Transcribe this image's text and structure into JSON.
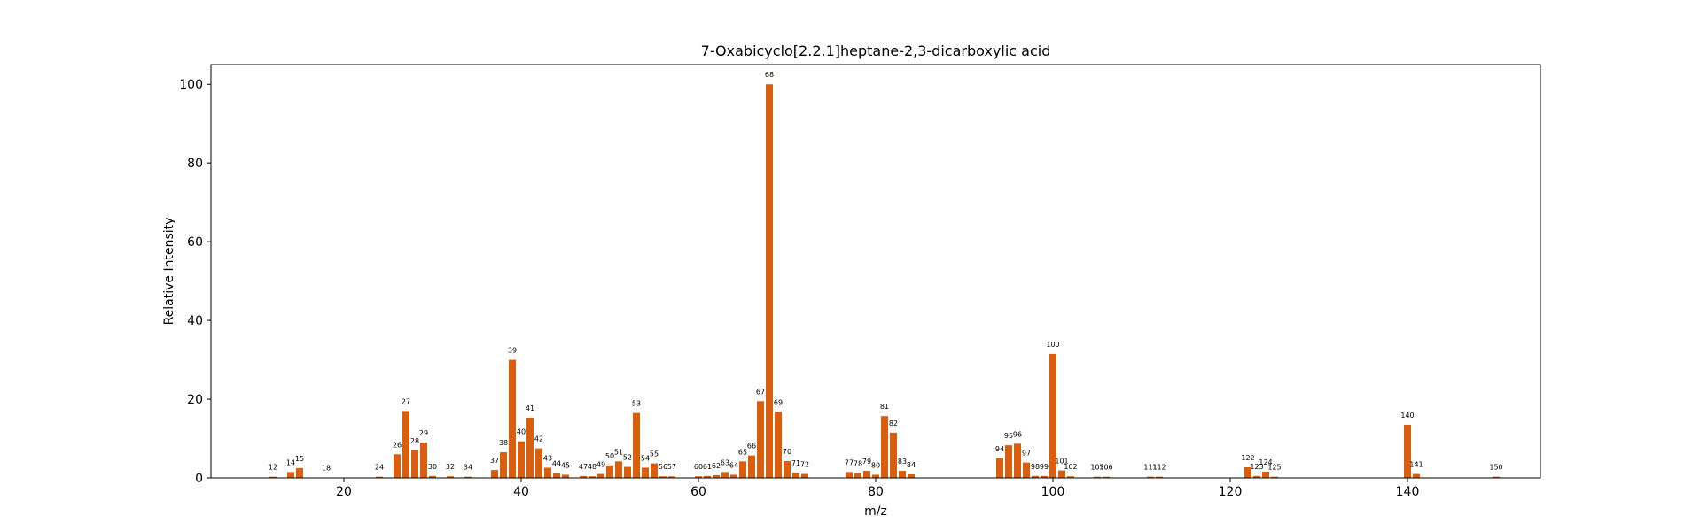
{
  "chart_data": {
    "type": "bar",
    "title": "7-Oxabicyclo[2.2.1]heptane-2,3-dicarboxylic acid",
    "xlabel": "m/z",
    "ylabel": "Relative Intensity",
    "xlim": [
      5,
      155
    ],
    "ylim": [
      0,
      105
    ],
    "xticks": [
      20,
      40,
      60,
      80,
      100,
      120,
      140
    ],
    "yticks": [
      0,
      20,
      40,
      60,
      80,
      100
    ],
    "bar_color": "#d95f0e",
    "bar_width": 0.8,
    "x": [
      12,
      14,
      15,
      18,
      24,
      26,
      27,
      28,
      29,
      30,
      32,
      34,
      37,
      38,
      39,
      40,
      41,
      42,
      43,
      44,
      45,
      47,
      48,
      49,
      50,
      51,
      52,
      53,
      54,
      55,
      56,
      57,
      60,
      61,
      62,
      63,
      64,
      65,
      66,
      67,
      68,
      69,
      70,
      71,
      72,
      77,
      78,
      79,
      80,
      81,
      82,
      83,
      84,
      94,
      95,
      96,
      97,
      98,
      99,
      100,
      101,
      102,
      105,
      106,
      111,
      112,
      122,
      123,
      124,
      125,
      140,
      141,
      150
    ],
    "values": [
      0.3,
      1.5,
      2.5,
      0.1,
      0.3,
      6.0,
      17.0,
      7.0,
      9.0,
      0.5,
      0.4,
      0.3,
      2.0,
      6.5,
      30.0,
      9.3,
      15.3,
      7.5,
      2.6,
      1.2,
      0.8,
      0.5,
      0.4,
      1.0,
      3.2,
      4.2,
      2.8,
      16.5,
      2.6,
      3.7,
      0.4,
      0.4,
      0.4,
      0.5,
      0.7,
      1.5,
      0.8,
      4.2,
      5.7,
      19.5,
      100.0,
      16.8,
      4.3,
      1.3,
      1.0,
      1.5,
      1.2,
      1.8,
      0.8,
      15.7,
      11.5,
      1.8,
      0.9,
      5.0,
      8.3,
      8.7,
      3.9,
      0.5,
      0.5,
      31.5,
      1.9,
      0.4,
      0.3,
      0.3,
      0.3,
      0.3,
      2.7,
      0.5,
      1.6,
      0.3,
      13.5,
      1.0,
      0.3
    ],
    "labels": [
      "12",
      "14",
      "15",
      "18",
      "24",
      "26",
      "27",
      "28",
      "29",
      "30",
      "32",
      "34",
      "37",
      "38",
      "39",
      "40",
      "41",
      "42",
      "43",
      "44",
      "45",
      "47",
      "48",
      "49",
      "50",
      "51",
      "52",
      "53",
      "54",
      "55",
      "56",
      "57",
      "60",
      "61",
      "62",
      "63",
      "64",
      "65",
      "66",
      "67",
      "68",
      "69",
      "70",
      "71",
      "72",
      "77",
      "78",
      "79",
      "80",
      "81",
      "82",
      "83",
      "84",
      "94",
      "95",
      "96",
      "97",
      "98",
      "99",
      "100",
      "101",
      "102",
      "105",
      "106",
      "111",
      "112",
      "122",
      "123",
      "124",
      "125",
      "140",
      "141",
      "150"
    ]
  }
}
